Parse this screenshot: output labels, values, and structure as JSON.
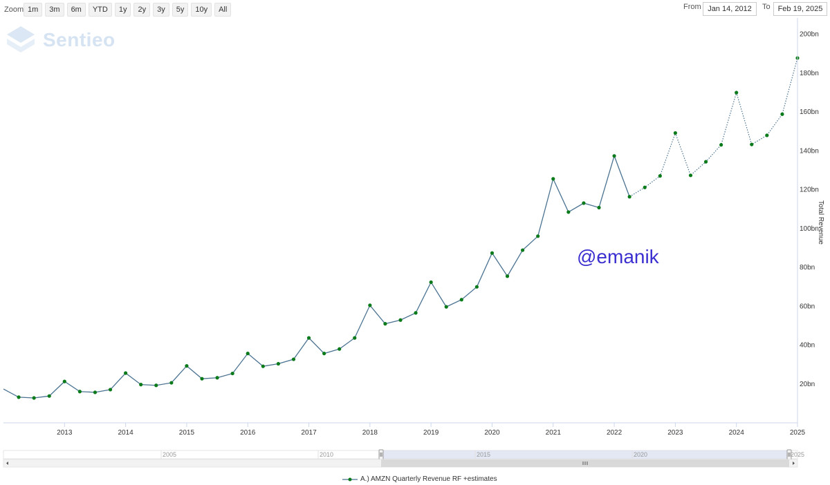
{
  "toolbar": {
    "zoom_label": "Zoom",
    "zoom_buttons": [
      "1m",
      "3m",
      "6m",
      "YTD",
      "1y",
      "2y",
      "3y",
      "5y",
      "10y",
      "All"
    ],
    "from_label": "From",
    "from_value": "Jan 14, 2012",
    "to_label": "To",
    "to_value": "Feb 19, 2025"
  },
  "logo": {
    "text": "Sentieo",
    "icon": "sentieo-logo-icon"
  },
  "watermark": "@emanik",
  "legend": {
    "label": "A.) AMZN Quarterly Revenue RF +estimates"
  },
  "colors": {
    "line": "#4a7291",
    "marker": "#0a7a1a",
    "navigator_fill": "#ccd6eb"
  },
  "navigator": {
    "ticks": [
      "2005",
      "2010",
      "2015",
      "2020",
      "2025"
    ]
  },
  "chart_data": {
    "type": "line",
    "title": "",
    "xlabel": "",
    "ylabel": "Total Revenue",
    "x_ticks": [
      "2013",
      "2014",
      "2015",
      "2016",
      "2017",
      "2018",
      "2019",
      "2020",
      "2021",
      "2022",
      "2023",
      "2024",
      "2025"
    ],
    "y_ticks": [
      "20bn",
      "40bn",
      "60bn",
      "80bn",
      "100bn",
      "120bn",
      "140bn",
      "160bn",
      "180bn",
      "200bn"
    ],
    "ylim": [
      0,
      207
    ],
    "xlim": [
      2012.0,
      2025.0
    ],
    "grid": false,
    "legend_position": "bottom-center",
    "series": [
      {
        "name": "A.) AMZN Quarterly Revenue RF +estimates",
        "points": [
          [
            2012.25,
            13.2
          ],
          [
            2012.5,
            12.8
          ],
          [
            2012.75,
            13.8
          ],
          [
            2013.0,
            21.3
          ],
          [
            2013.25,
            16.1
          ],
          [
            2013.5,
            15.7
          ],
          [
            2013.75,
            17.1
          ],
          [
            2014.0,
            25.6
          ],
          [
            2014.25,
            19.7
          ],
          [
            2014.5,
            19.3
          ],
          [
            2014.75,
            20.6
          ],
          [
            2015.0,
            29.3
          ],
          [
            2015.25,
            22.7
          ],
          [
            2015.5,
            23.2
          ],
          [
            2015.75,
            25.4
          ],
          [
            2016.0,
            35.7
          ],
          [
            2016.25,
            29.1
          ],
          [
            2016.5,
            30.4
          ],
          [
            2016.75,
            32.7
          ],
          [
            2017.0,
            43.7
          ],
          [
            2017.25,
            35.7
          ],
          [
            2017.5,
            38.0
          ],
          [
            2017.75,
            43.7
          ],
          [
            2018.0,
            60.5
          ],
          [
            2018.25,
            51.0
          ],
          [
            2018.5,
            52.9
          ],
          [
            2018.75,
            56.6
          ],
          [
            2019.0,
            72.4
          ],
          [
            2019.25,
            59.7
          ],
          [
            2019.5,
            63.4
          ],
          [
            2019.75,
            70.0
          ],
          [
            2020.0,
            87.4
          ],
          [
            2020.25,
            75.5
          ],
          [
            2020.5,
            88.9
          ],
          [
            2020.75,
            96.1
          ],
          [
            2021.0,
            125.6
          ],
          [
            2021.25,
            108.5
          ],
          [
            2021.5,
            113.1
          ],
          [
            2021.75,
            110.8
          ],
          [
            2022.0,
            137.4
          ],
          [
            2022.25,
            116.4
          ],
          [
            2022.5,
            121.2
          ],
          [
            2022.75,
            127.1
          ],
          [
            2023.0,
            149.2
          ],
          [
            2023.25,
            127.4
          ],
          [
            2023.5,
            134.4
          ],
          [
            2023.75,
            143.1
          ],
          [
            2024.0,
            170.0
          ],
          [
            2024.25,
            143.3
          ],
          [
            2024.5,
            148.0
          ],
          [
            2024.75,
            158.9
          ],
          [
            2025.0,
            187.8
          ]
        ],
        "actual_until": 2022.25
      }
    ]
  }
}
